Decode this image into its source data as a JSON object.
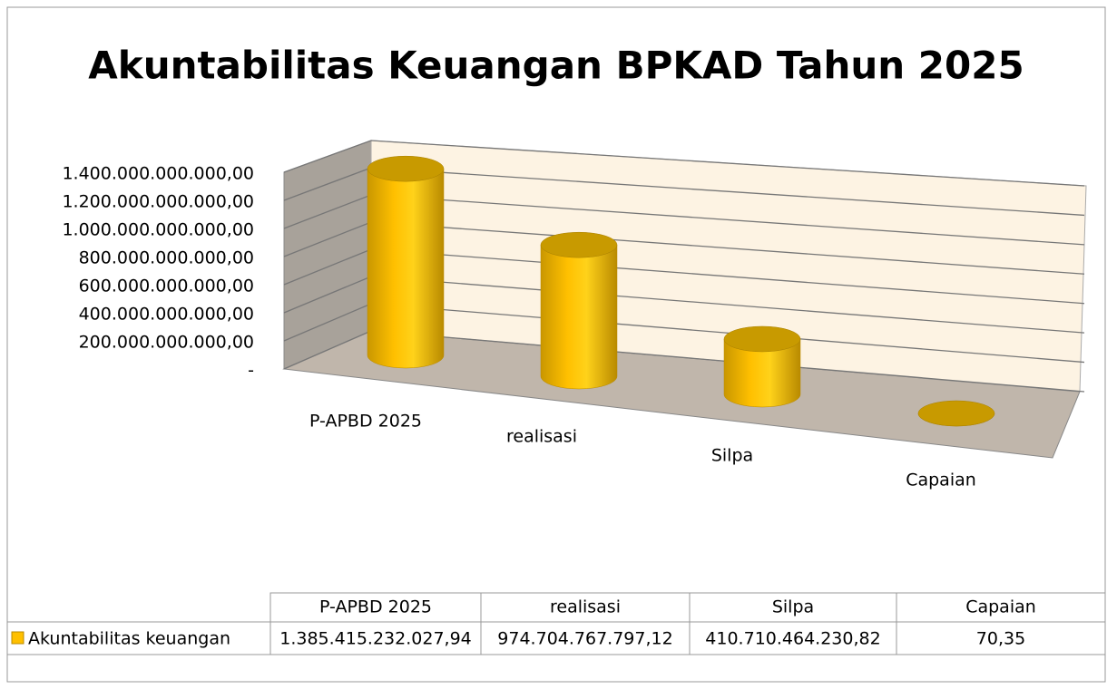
{
  "chart_data": {
    "type": "bar",
    "title": "Akuntabilitas Keuangan BPKAD Tahun 2025",
    "categories": [
      "P-APBD 2025",
      "realisasi",
      "Silpa",
      "Capaian"
    ],
    "series": [
      {
        "name": "Akuntabilitas keuangan",
        "color": "#ffc000",
        "values": [
          1385415232027.94,
          974704767797.12,
          410710464230.82,
          70.35
        ],
        "value_labels": [
          "1.385.415.232.027,94",
          "974.704.767.797,12",
          "410.710.464.230,82",
          "70,35"
        ]
      }
    ],
    "ylim": [
      0,
      1400000000000
    ],
    "yticks": [
      {
        "value": 0,
        "label": "-"
      },
      {
        "value": 200000000000,
        "label": "200.000.000.000,00"
      },
      {
        "value": 400000000000,
        "label": "400.000.000.000,00"
      },
      {
        "value": 600000000000,
        "label": "600.000.000.000,00"
      },
      {
        "value": 800000000000,
        "label": "800.000.000.000,00"
      },
      {
        "value": 1000000000000,
        "label": "1.000.000.000.000,00"
      },
      {
        "value": 1200000000000,
        "label": "1.200.000.000.000,00"
      },
      {
        "value": 1400000000000,
        "label": "1.400.000.000.000,00"
      }
    ],
    "grid": true
  }
}
